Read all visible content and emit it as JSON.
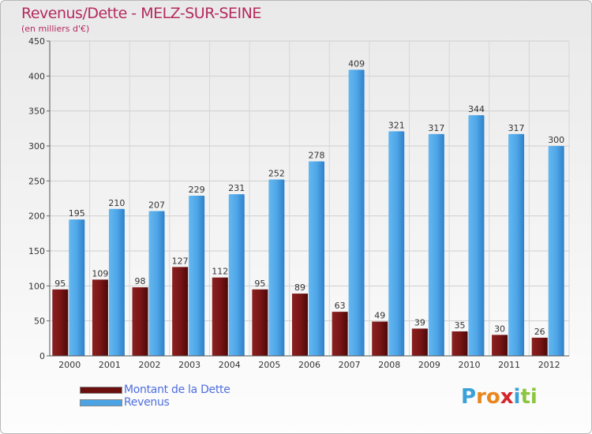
{
  "header": {
    "title": "Revenus/Dette - MELZ-SUR-SEINE",
    "subtitle": "(en milliers d'€)"
  },
  "chart_data": {
    "type": "bar",
    "categories": [
      "2000",
      "2001",
      "2002",
      "2003",
      "2004",
      "2005",
      "2006",
      "2007",
      "2008",
      "2009",
      "2010",
      "2011",
      "2012"
    ],
    "series": [
      {
        "name": "Montant de la Dette",
        "color": "#7a1515",
        "values": [
          95,
          109,
          98,
          127,
          112,
          95,
          89,
          63,
          49,
          39,
          35,
          30,
          26
        ]
      },
      {
        "name": "Revenus",
        "color": "#4ba3e4",
        "values": [
          195,
          210,
          207,
          229,
          231,
          252,
          278,
          409,
          321,
          317,
          344,
          317,
          300
        ]
      }
    ],
    "ylim": [
      0,
      450
    ],
    "yticks": [
      0,
      50,
      100,
      150,
      200,
      250,
      300,
      350,
      400,
      450
    ],
    "grid": true,
    "legend_position": "bottom-left"
  },
  "legend": {
    "items": [
      {
        "label": "Montant de la Dette",
        "color": "#6b0f0f"
      },
      {
        "label": "Revenus",
        "color": "#4ba3e4"
      }
    ]
  },
  "logo": {
    "letters": [
      {
        "ch": "P",
        "color": "#3aa0d8"
      },
      {
        "ch": "r",
        "color": "#e8871e"
      },
      {
        "ch": "o",
        "color": "#e8871e"
      },
      {
        "ch": "x",
        "color": "#d6242b"
      },
      {
        "ch": "i",
        "color": "#3aa0d8"
      },
      {
        "ch": "t",
        "color": "#8cc63f"
      },
      {
        "ch": "i",
        "color": "#8cc63f"
      }
    ]
  }
}
